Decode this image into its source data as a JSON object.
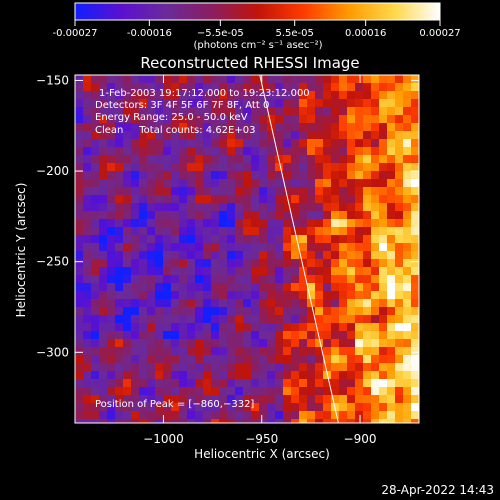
{
  "chart_data": {
    "type": "heatmap",
    "title": "Reconstructed RHESSI Image",
    "xlabel": "Heliocentric X (arcsec)",
    "ylabel": "Heliocentric Y (arcsec)",
    "xlim": [
      -1045,
      -870
    ],
    "ylim": [
      -339,
      -147
    ],
    "x_ticks": [
      -1000,
      -950,
      -900
    ],
    "x_tick_labels": [
      "−1000",
      "−950",
      "−900"
    ],
    "y_ticks": [
      -150,
      -200,
      -250,
      -300
    ],
    "y_tick_labels": [
      "−150",
      "−200",
      "−250",
      "−300"
    ],
    "colorbar": {
      "min": -0.00027,
      "max": 0.00027,
      "ticks": [
        -0.00027,
        -0.00016,
        -5.5e-05,
        5.5e-05,
        0.00016,
        0.00027
      ],
      "tick_labels": [
        "-0.00027",
        "-0.00016",
        "−5.5e-05",
        "5.5e-05",
        "0.00016",
        "0.00027"
      ],
      "unit_label": "(photons cm⁻² s⁻¹ asec⁻²)",
      "colors": [
        "#1020ff",
        "#5a10d0",
        "#6a2a9a",
        "#8a1e60",
        "#c0140a",
        "#ff3a00",
        "#ff9a00",
        "#ffd84a",
        "#ffffff"
      ]
    },
    "annotations": [
      "1-Feb-2003 19:17:12.000 to 19:23:12.000",
      "Detectors: 3F 4F 5F 6F 7F 8F, Att 0",
      "Energy Range: 25.0 - 50.0 keV",
      "Clean     Total counts: 4.62E+03",
      "Position of Peak = [−860,−332]"
    ],
    "peak": [
      -860,
      -332
    ],
    "limb_line": {
      "x": [
        -951,
        -911
      ],
      "y": [
        -147,
        -339
      ]
    },
    "grid": false
  },
  "footer": {
    "timestamp": "28-Apr-2022 14:43"
  }
}
